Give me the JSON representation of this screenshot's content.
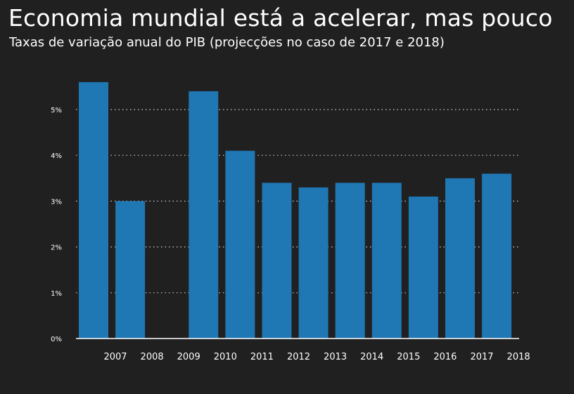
{
  "header": {
    "title": "Economia mundial está a acelerar, mas pouco",
    "subtitle": "Taxas de variação anual do PIB (projecções no caso de 2017 e 2018)"
  },
  "colors": {
    "background": "#202020",
    "bar": "#1f77b4",
    "text": "#ffffff",
    "grid": "#d0d0d0"
  },
  "chart_data": {
    "type": "bar",
    "title": "Economia mundial está a acelerar, mas pouco",
    "subtitle": "Taxas de variação anual do PIB (projecções no caso de 2017 e 2018)",
    "categories": [
      "2007",
      "2008",
      "2009",
      "2010",
      "2011",
      "2012",
      "2013",
      "2014",
      "2015",
      "2016",
      "2017",
      "2018"
    ],
    "values": [
      5.6,
      3.0,
      0,
      5.4,
      4.1,
      3.4,
      3.3,
      3.4,
      3.4,
      3.1,
      3.5,
      3.6
    ],
    "ylim": [
      0,
      6
    ],
    "yticks": [
      0,
      1,
      2,
      3,
      4,
      5
    ],
    "ytick_labels": [
      "0%",
      "1%",
      "2%",
      "3%",
      "4%",
      "5%"
    ],
    "grid": true,
    "grid_style": "dotted",
    "xlabel": "",
    "ylabel": ""
  }
}
